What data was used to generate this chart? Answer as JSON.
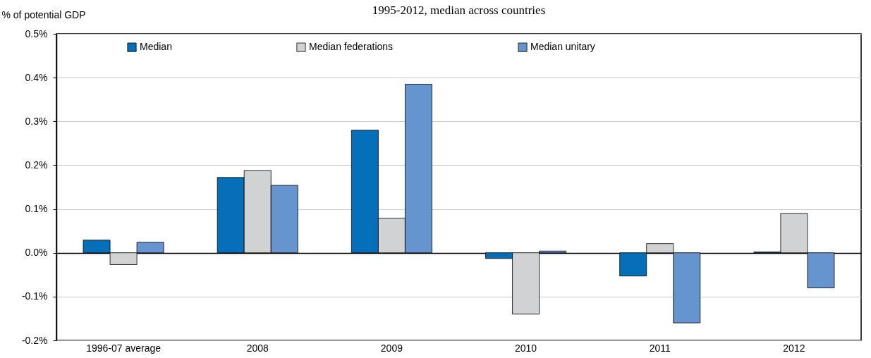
{
  "chart_data": {
    "type": "bar",
    "subtitle": "1995-2012, median across countries",
    "ylabel": "% of potential GDP",
    "categories": [
      "1996-07 average",
      "2008",
      "2009",
      "2010",
      "2011",
      "2012"
    ],
    "series": [
      {
        "name": "Median",
        "color": "#0570b9",
        "values": [
          0.029,
          0.172,
          0.28,
          -0.013,
          -0.053,
          0.002
        ]
      },
      {
        "name": "Median federations",
        "color": "#d1d2d4",
        "values": [
          -0.027,
          0.188,
          0.079,
          -0.14,
          0.021,
          0.09
        ]
      },
      {
        "name": "Median unitary",
        "color": "#6694cf",
        "values": [
          0.024,
          0.154,
          0.385,
          0.004,
          -0.16,
          -0.08
        ]
      }
    ],
    "ylim": [
      -0.2,
      0.5
    ],
    "yticks": [
      {
        "value": -0.2,
        "label": "-0.2%"
      },
      {
        "value": -0.1,
        "label": "-0.1%"
      },
      {
        "value": 0,
        "label": "0.0%"
      },
      {
        "value": 0.1,
        "label": "0.1%"
      },
      {
        "value": 0.2,
        "label": "0.2%"
      },
      {
        "value": 0.3,
        "label": "0.3%"
      },
      {
        "value": 0.4,
        "label": "0.4%"
      },
      {
        "value": 0.5,
        "label": "0.5%"
      }
    ],
    "grid": "y",
    "legend": "top"
  }
}
